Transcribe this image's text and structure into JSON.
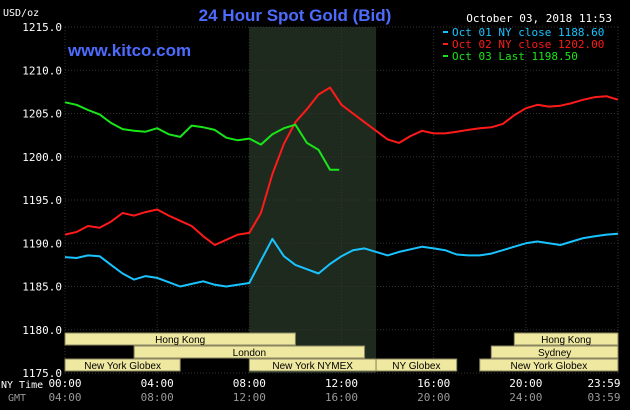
{
  "header": {
    "unit_label": "USD/oz",
    "title": "24 Hour Spot Gold (Bid)",
    "site": "www.kitco.com",
    "datetime": "October 03, 2018 11:53"
  },
  "legend": [
    {
      "text": "Oct 01 NY close 1188.60",
      "color": "#19c3ff"
    },
    {
      "text": "Oct 02 NY close 1202.00",
      "color": "#ff1a1a"
    },
    {
      "text": "Oct 03 Last 1198.50",
      "color": "#19e619"
    }
  ],
  "colors": {
    "background": "#000000",
    "title": "#4d6bff",
    "site": "#4d6bff",
    "session_bg": "#eee8a0",
    "session_text": "#000000",
    "shaded_region": "#1e2a1e",
    "grid": "#333333",
    "axis_text": "#ffffff",
    "gmt_text": "#9a9a9a"
  },
  "axis_labels": {
    "ny_time": "NY Time",
    "gmt": "GMT"
  },
  "sessions": [
    {
      "label": "Hong Kong",
      "row": 1,
      "start": 0.0,
      "end": 10.0
    },
    {
      "label": "London",
      "row": 2,
      "start": 3.0,
      "end": 13.0
    },
    {
      "label": "New York Globex",
      "row": 3,
      "start": 0.0,
      "end": 5.0
    },
    {
      "label": "New York NYMEX",
      "row": 3,
      "start": 8.0,
      "end": 13.5
    },
    {
      "label": "NY Globex",
      "row": 3,
      "start": 13.5,
      "end": 17.0
    },
    {
      "label": "Hong Kong",
      "row": 1,
      "start": 19.5,
      "end": 24.0
    },
    {
      "label": "Sydney",
      "row": 2,
      "start": 18.5,
      "end": 24.0
    },
    {
      "label": "New York Globex",
      "row": 3,
      "start": 18.0,
      "end": 24.0
    }
  ],
  "chart_data": {
    "type": "line",
    "title": "24 Hour Spot Gold (Bid)",
    "ylabel": "USD/oz",
    "ylim": [
      1175,
      1215
    ],
    "y_ticks": [
      "1215.0",
      "1210.0",
      "1205.0",
      "1200.0",
      "1195.0",
      "1190.0",
      "1185.0",
      "1180.0",
      "1175.0"
    ],
    "y_tick_values": [
      1215,
      1210,
      1205,
      1200,
      1195,
      1190,
      1185,
      1180,
      1175
    ],
    "xlim": [
      0,
      24
    ],
    "x_ticks_ny": [
      "00:00",
      "04:00",
      "08:00",
      "12:00",
      "16:00",
      "20:00",
      "23:59"
    ],
    "x_ticks_gmt": [
      "04:00",
      "08:00",
      "12:00",
      "16:00",
      "20:00",
      "24:00",
      "03:59"
    ],
    "x_tick_values": [
      0,
      4,
      8,
      12,
      16,
      20,
      24
    ],
    "shaded_range": [
      8.0,
      13.5
    ],
    "grid": true,
    "legend_position": "top-right",
    "series": [
      {
        "name": "Oct 01 NY close 1188.60",
        "color": "#19c3ff",
        "x": [
          0,
          0.5,
          1,
          1.5,
          2,
          2.5,
          3,
          3.5,
          4,
          4.5,
          5,
          5.5,
          6,
          6.5,
          7,
          7.5,
          8,
          8.5,
          9,
          9.5,
          10,
          10.5,
          11,
          11.5,
          12,
          12.5,
          13,
          13.5,
          14,
          14.5,
          15,
          15.5,
          16,
          16.5,
          17,
          17.5,
          18,
          18.5,
          19,
          19.5,
          20,
          20.5,
          21,
          21.5,
          22,
          22.5,
          23,
          23.5,
          24
        ],
        "values": [
          1188.4,
          1188.3,
          1188.6,
          1188.5,
          1187.5,
          1186.5,
          1185.8,
          1186.2,
          1186.0,
          1185.5,
          1185.0,
          1185.3,
          1185.6,
          1185.2,
          1185.0,
          1185.2,
          1185.4,
          1188.0,
          1190.5,
          1188.5,
          1187.5,
          1187.0,
          1186.5,
          1187.6,
          1188.5,
          1189.2,
          1189.4,
          1189.0,
          1188.6,
          1189.0,
          1189.3,
          1189.6,
          1189.4,
          1189.2,
          1188.7,
          1188.6,
          1188.6,
          1188.8,
          1189.2,
          1189.6,
          1190.0,
          1190.2,
          1190.0,
          1189.8,
          1190.2,
          1190.6,
          1190.8,
          1191.0,
          1191.1
        ]
      },
      {
        "name": "Oct 02 NY close 1202.00",
        "color": "#ff1a1a",
        "x": [
          0,
          0.5,
          1,
          1.5,
          2,
          2.5,
          3,
          3.5,
          4,
          4.5,
          5,
          5.5,
          6,
          6.5,
          7,
          7.5,
          8,
          8.5,
          9,
          9.5,
          10,
          10.5,
          11,
          11.5,
          12,
          12.5,
          13,
          13.5,
          14,
          14.5,
          15,
          15.5,
          16,
          16.5,
          17,
          17.5,
          18,
          18.5,
          19,
          19.5,
          20,
          20.5,
          21,
          21.5,
          22,
          22.5,
          23,
          23.5,
          24
        ],
        "values": [
          1191.0,
          1191.3,
          1192.0,
          1191.8,
          1192.5,
          1193.5,
          1193.2,
          1193.6,
          1193.9,
          1193.2,
          1192.6,
          1192.0,
          1190.8,
          1189.8,
          1190.4,
          1191.0,
          1191.2,
          1193.5,
          1198.0,
          1201.5,
          1204.0,
          1205.5,
          1207.2,
          1208.0,
          1206.0,
          1205.0,
          1204.0,
          1203.0,
          1202.0,
          1201.6,
          1202.4,
          1203.0,
          1202.7,
          1202.7,
          1202.9,
          1203.1,
          1203.3,
          1203.4,
          1203.8,
          1204.8,
          1205.6,
          1206.0,
          1205.8,
          1205.9,
          1206.2,
          1206.6,
          1206.9,
          1207.0,
          1206.6
        ]
      },
      {
        "name": "Oct 03 Last 1198.50",
        "color": "#19e619",
        "x": [
          0,
          0.5,
          1,
          1.5,
          2,
          2.5,
          3,
          3.5,
          4,
          4.5,
          5,
          5.5,
          6,
          6.5,
          7,
          7.5,
          8,
          8.5,
          9,
          9.5,
          10,
          10.5,
          11,
          11.5,
          11.9
        ],
        "values": [
          1206.3,
          1206.0,
          1205.4,
          1204.9,
          1203.9,
          1203.2,
          1203.0,
          1202.9,
          1203.3,
          1202.6,
          1202.3,
          1203.6,
          1203.4,
          1203.1,
          1202.2,
          1201.9,
          1202.1,
          1201.4,
          1202.6,
          1203.3,
          1203.7,
          1201.6,
          1200.8,
          1198.5,
          1198.5
        ]
      }
    ]
  }
}
